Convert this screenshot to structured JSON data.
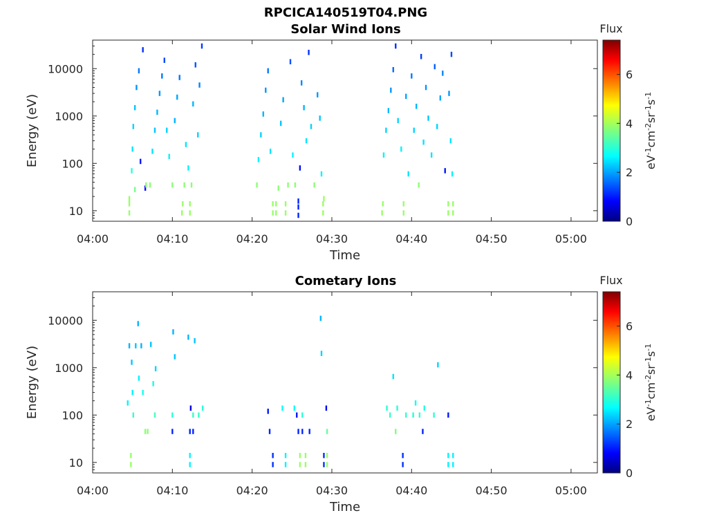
{
  "figure_title": "RPCICA140519T04.PNG",
  "colormap": [
    "#00007f",
    "#0000ff",
    "#007fff",
    "#00ffff",
    "#7fff7f",
    "#ffff00",
    "#ff7f00",
    "#ff0000",
    "#7f0000"
  ],
  "chart_data": [
    {
      "type": "heatmap",
      "title": "Solar Wind Ions",
      "xlabel": "Time",
      "ylabel": "Energy (eV)",
      "x_ticks": [
        "04:00",
        "04:10",
        "04:20",
        "04:30",
        "04:40",
        "04:50",
        "05:00"
      ],
      "x_tick_minutes": [
        0,
        10,
        20,
        30,
        40,
        50,
        60
      ],
      "xlim_minutes": [
        0,
        63.3
      ],
      "y_ticks": [
        "10",
        "100",
        "1000",
        "10000"
      ],
      "y_tick_values": [
        10,
        100,
        1000,
        10000
      ],
      "ylim": [
        6,
        40000
      ],
      "y_scale": "log",
      "colorbar": {
        "title": "Flux",
        "label": "eV-1cm-2sr-1s-1",
        "ticks": [
          "0",
          "2",
          "4",
          "6"
        ],
        "tick_values": [
          0,
          2,
          4,
          6
        ],
        "range": [
          0,
          7.4
        ]
      },
      "bursts": [
        [
          4.5,
          13.9
        ],
        [
          20.2,
          29.2
        ],
        [
          36.2,
          45.4
        ]
      ],
      "cells": [
        [
          4.6,
          9,
          3.9
        ],
        [
          4.6,
          14,
          3.9
        ],
        [
          4.6,
          18,
          3.9
        ],
        [
          5.3,
          28,
          3.6
        ],
        [
          4.9,
          70,
          3.0
        ],
        [
          5.0,
          200,
          2.5
        ],
        [
          5.1,
          600,
          2.4
        ],
        [
          5.3,
          1500,
          2.3
        ],
        [
          5.5,
          4000,
          2.0
        ],
        [
          5.8,
          9000,
          1.8
        ],
        [
          6.3,
          25000,
          1.2
        ],
        [
          6.0,
          110,
          1.0
        ],
        [
          6.6,
          30,
          0.9
        ],
        [
          6.7,
          35,
          3.8
        ],
        [
          7.2,
          35,
          3.8
        ],
        [
          7.5,
          180,
          2.5
        ],
        [
          7.8,
          500,
          2.3
        ],
        [
          8.1,
          1200,
          2.2
        ],
        [
          8.4,
          3000,
          2.0
        ],
        [
          8.7,
          7000,
          1.8
        ],
        [
          9.0,
          15000,
          1.4
        ],
        [
          9.3,
          500,
          2.4
        ],
        [
          9.6,
          140,
          2.6
        ],
        [
          10.0,
          35,
          3.8
        ],
        [
          10.3,
          800,
          2.2
        ],
        [
          10.6,
          2500,
          2.1
        ],
        [
          10.9,
          6500,
          1.8
        ],
        [
          11.2,
          9,
          3.9
        ],
        [
          11.3,
          14,
          3.9
        ],
        [
          11.5,
          35,
          3.8
        ],
        [
          11.7,
          250,
          2.5
        ],
        [
          12.0,
          80,
          2.6
        ],
        [
          12.2,
          9,
          3.9
        ],
        [
          12.2,
          14,
          3.9
        ],
        [
          12.4,
          35,
          3.8
        ],
        [
          12.6,
          1800,
          2.2
        ],
        [
          12.9,
          12000,
          1.5
        ],
        [
          13.2,
          400,
          2.4
        ],
        [
          13.4,
          4500,
          1.9
        ],
        [
          13.7,
          30000,
          1.3
        ],
        [
          20.6,
          35,
          3.8
        ],
        [
          20.8,
          120,
          2.6
        ],
        [
          21.1,
          400,
          2.4
        ],
        [
          21.4,
          1100,
          2.2
        ],
        [
          21.7,
          3500,
          2.0
        ],
        [
          22.0,
          9000,
          1.8
        ],
        [
          22.3,
          180,
          2.5
        ],
        [
          22.6,
          9,
          3.9
        ],
        [
          22.6,
          14,
          3.9
        ],
        [
          23.0,
          9,
          3.9
        ],
        [
          23.0,
          14,
          3.9
        ],
        [
          23.3,
          30,
          3.8
        ],
        [
          23.6,
          700,
          2.3
        ],
        [
          23.9,
          2200,
          2.1
        ],
        [
          24.2,
          9,
          3.9
        ],
        [
          24.2,
          14,
          3.9
        ],
        [
          24.5,
          35,
          3.8
        ],
        [
          24.8,
          14000,
          1.5
        ],
        [
          25.1,
          150,
          2.6
        ],
        [
          25.4,
          35,
          3.8
        ],
        [
          25.8,
          8,
          1.1
        ],
        [
          25.8,
          12,
          1.1
        ],
        [
          25.8,
          16,
          1.1
        ],
        [
          26.0,
          80,
          0.9
        ],
        [
          26.2,
          5000,
          1.9
        ],
        [
          26.5,
          1500,
          2.2
        ],
        [
          26.8,
          300,
          2.5
        ],
        [
          27.1,
          22000,
          1.2
        ],
        [
          27.4,
          600,
          2.4
        ],
        [
          27.8,
          35,
          3.8
        ],
        [
          28.2,
          2800,
          2.0
        ],
        [
          28.5,
          900,
          2.3
        ],
        [
          28.9,
          9,
          3.9
        ],
        [
          28.9,
          14,
          3.9
        ],
        [
          29.0,
          18,
          3.9
        ],
        [
          28.7,
          60,
          2.6
        ],
        [
          36.3,
          9,
          3.9
        ],
        [
          36.4,
          14,
          3.9
        ],
        [
          36.5,
          150,
          2.6
        ],
        [
          36.8,
          500,
          2.4
        ],
        [
          37.1,
          1300,
          2.2
        ],
        [
          37.4,
          3500,
          2.0
        ],
        [
          37.7,
          9500,
          1.7
        ],
        [
          38.0,
          30000,
          1.2
        ],
        [
          38.3,
          800,
          2.4
        ],
        [
          38.7,
          200,
          2.6
        ],
        [
          39.0,
          9,
          3.9
        ],
        [
          39.0,
          14,
          3.9
        ],
        [
          39.3,
          2600,
          2.1
        ],
        [
          39.6,
          60,
          2.5
        ],
        [
          40.0,
          7000,
          1.8
        ],
        [
          40.3,
          500,
          2.4
        ],
        [
          40.6,
          1600,
          2.2
        ],
        [
          40.9,
          35,
          3.8
        ],
        [
          41.2,
          18000,
          1.3
        ],
        [
          41.5,
          280,
          2.5
        ],
        [
          41.8,
          4000,
          2.0
        ],
        [
          42.1,
          900,
          2.3
        ],
        [
          42.5,
          150,
          2.5
        ],
        [
          42.9,
          11000,
          1.6
        ],
        [
          43.2,
          600,
          2.4
        ],
        [
          43.6,
          2400,
          2.1
        ],
        [
          43.9,
          8000,
          1.9
        ],
        [
          44.2,
          70,
          1.0
        ],
        [
          44.6,
          9,
          3.9
        ],
        [
          44.6,
          14,
          3.9
        ],
        [
          44.9,
          300,
          2.5
        ],
        [
          45.2,
          9,
          3.9
        ],
        [
          45.2,
          14,
          3.9
        ],
        [
          45.1,
          60,
          2.6
        ],
        [
          44.7,
          3000,
          2.0
        ],
        [
          45.0,
          20000,
          1.4
        ]
      ]
    },
    {
      "type": "heatmap",
      "title": "Cometary Ions",
      "xlabel": "Time",
      "ylabel": "Energy (eV)",
      "x_ticks": [
        "04:00",
        "04:10",
        "04:20",
        "04:30",
        "04:40",
        "04:50",
        "05:00"
      ],
      "x_tick_minutes": [
        0,
        10,
        20,
        30,
        40,
        50,
        60
      ],
      "xlim_minutes": [
        0,
        63.3
      ],
      "y_ticks": [
        "10",
        "100",
        "1000",
        "10000"
      ],
      "y_tick_values": [
        10,
        100,
        1000,
        10000
      ],
      "ylim": [
        6,
        40000
      ],
      "y_scale": "log",
      "colorbar": {
        "title": "Flux",
        "label": "eV-1cm-2sr-1s-1",
        "ticks": [
          "0",
          "2",
          "4",
          "6"
        ],
        "tick_values": [
          0,
          2,
          4,
          6
        ],
        "range": [
          0,
          7.4
        ]
      },
      "cells": [
        [
          4.4,
          180,
          2.6
        ],
        [
          4.6,
          2900,
          2.2
        ],
        [
          4.8,
          9,
          3.9
        ],
        [
          4.8,
          14,
          3.9
        ],
        [
          4.9,
          1300,
          2.3
        ],
        [
          5.0,
          300,
          2.6
        ],
        [
          5.1,
          100,
          3.1
        ],
        [
          5.4,
          2900,
          2.3
        ],
        [
          5.7,
          8500,
          2.2
        ],
        [
          5.8,
          600,
          2.6
        ],
        [
          6.1,
          2900,
          2.2
        ],
        [
          6.3,
          300,
          2.8
        ],
        [
          6.6,
          45,
          3.8
        ],
        [
          6.9,
          45,
          3.8
        ],
        [
          7.3,
          3100,
          2.3
        ],
        [
          7.6,
          460,
          2.8
        ],
        [
          7.8,
          100,
          3.2
        ],
        [
          7.9,
          950,
          2.4
        ],
        [
          10.0,
          45,
          1.1
        ],
        [
          10.0,
          100,
          3.0
        ],
        [
          10.1,
          5700,
          2.2
        ],
        [
          10.3,
          1700,
          2.3
        ],
        [
          12.0,
          4400,
          2.2
        ],
        [
          12.2,
          9,
          2.6
        ],
        [
          12.2,
          14,
          2.6
        ],
        [
          12.2,
          45,
          1.1
        ],
        [
          12.3,
          140,
          0.6
        ],
        [
          12.6,
          100,
          3.1
        ],
        [
          12.6,
          45,
          1.1
        ],
        [
          12.8,
          3700,
          2.3
        ],
        [
          13.3,
          100,
          3.1
        ],
        [
          13.8,
          140,
          3.0
        ],
        [
          22.0,
          120,
          1.0
        ],
        [
          22.2,
          45,
          1.1
        ],
        [
          22.6,
          9,
          1.2
        ],
        [
          22.6,
          14,
          1.2
        ],
        [
          23.8,
          140,
          2.7
        ],
        [
          24.2,
          9,
          2.6
        ],
        [
          24.2,
          14,
          2.6
        ],
        [
          25.3,
          140,
          2.7
        ],
        [
          25.6,
          100,
          1.0
        ],
        [
          25.8,
          45,
          1.1
        ],
        [
          26.0,
          9,
          3.9
        ],
        [
          26.0,
          14,
          3.9
        ],
        [
          26.3,
          45,
          1.1
        ],
        [
          26.3,
          100,
          3.0
        ],
        [
          26.7,
          9,
          3.9
        ],
        [
          26.7,
          14,
          3.9
        ],
        [
          27.2,
          45,
          1.1
        ],
        [
          28.6,
          11000,
          2.2
        ],
        [
          28.7,
          2000,
          2.4
        ],
        [
          29.0,
          9,
          1.2
        ],
        [
          29.0,
          14,
          1.2
        ],
        [
          29.3,
          140,
          0.8
        ],
        [
          29.4,
          9,
          3.9
        ],
        [
          29.4,
          14,
          3.9
        ],
        [
          29.4,
          45,
          3.5
        ],
        [
          36.9,
          140,
          3.0
        ],
        [
          37.3,
          100,
          3.1
        ],
        [
          37.7,
          650,
          2.5
        ],
        [
          38.0,
          45,
          3.7
        ],
        [
          38.2,
          140,
          3.0
        ],
        [
          38.9,
          9,
          1.2
        ],
        [
          38.9,
          14,
          1.2
        ],
        [
          39.3,
          100,
          3.1
        ],
        [
          40.2,
          100,
          3.0
        ],
        [
          40.5,
          180,
          2.7
        ],
        [
          41.0,
          100,
          3.1
        ],
        [
          41.4,
          45,
          1.1
        ],
        [
          41.6,
          140,
          2.9
        ],
        [
          42.8,
          100,
          3.0
        ],
        [
          43.3,
          1150,
          2.4
        ],
        [
          44.6,
          100,
          1.0
        ],
        [
          44.6,
          9,
          2.6
        ],
        [
          44.6,
          14,
          2.6
        ],
        [
          45.2,
          9,
          2.6
        ],
        [
          45.2,
          14,
          2.6
        ]
      ]
    }
  ]
}
